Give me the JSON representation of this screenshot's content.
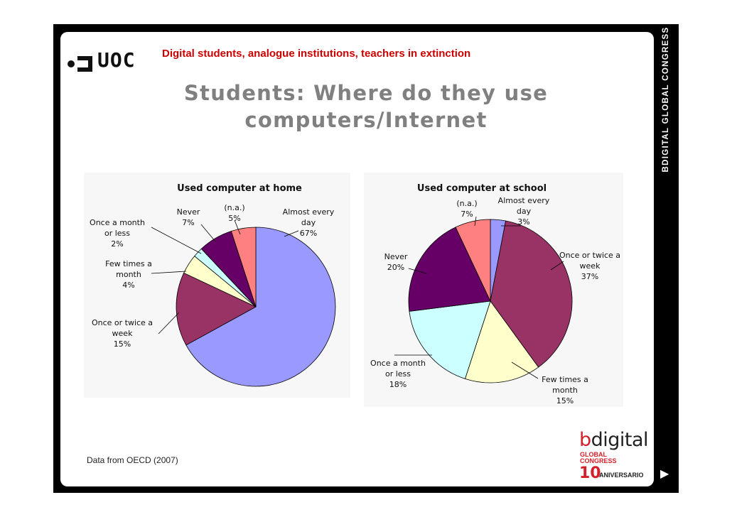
{
  "header": {
    "logo_text": "UOC",
    "subtitle": "Digital students, analogue institutions, teachers in extinction",
    "title": "Students: Where do they use\ncomputers/Internet"
  },
  "sidebar": {
    "label": "BDIGITAL GLOBAL CONGRESS",
    "next_icon": "▶"
  },
  "footer": {
    "source": "Data from OECD (2007)",
    "brand": {
      "b": "b",
      "rest": "digital",
      "line1": "GLOBAL",
      "line2": "CONGRESS",
      "number": "10",
      "anniversary": "ANIVERSARIO"
    }
  },
  "colors": {
    "subtitle": "#cc0000",
    "title": "#808080",
    "brand_red": "#d4202a"
  },
  "chart_data": [
    {
      "type": "pie",
      "title": "Used computer at home",
      "slices": [
        {
          "label": [
            "Almost every",
            "day",
            "67%"
          ],
          "value": 67,
          "color": "#9999ff"
        },
        {
          "label": [
            "Once or twice a",
            "week",
            "15%"
          ],
          "value": 15,
          "color": "#993366"
        },
        {
          "label": [
            "Few times a",
            "month",
            "4%"
          ],
          "value": 4,
          "color": "#ffffcc"
        },
        {
          "label": [
            "Once a month",
            "or less",
            "2%"
          ],
          "value": 2,
          "color": "#ccffff"
        },
        {
          "label": [
            "Never",
            "7%"
          ],
          "value": 7,
          "color": "#660066"
        },
        {
          "label": [
            "(n.a.)",
            "5%"
          ],
          "value": 5,
          "color": "#ff8080"
        }
      ]
    },
    {
      "type": "pie",
      "title": "Used computer at school",
      "slices": [
        {
          "label": [
            "Almost every",
            "day",
            "3%"
          ],
          "value": 3,
          "color": "#9999ff"
        },
        {
          "label": [
            "Once or twice a",
            "week",
            "37%"
          ],
          "value": 37,
          "color": "#993366"
        },
        {
          "label": [
            "Few times a",
            "month",
            "15%"
          ],
          "value": 15,
          "color": "#ffffcc"
        },
        {
          "label": [
            "Once a month",
            "or less",
            "18%"
          ],
          "value": 18,
          "color": "#ccffff"
        },
        {
          "label": [
            "Never",
            "20%"
          ],
          "value": 20,
          "color": "#660066"
        },
        {
          "label": [
            "(n.a.)",
            "7%"
          ],
          "value": 7,
          "color": "#ff8080"
        }
      ]
    }
  ]
}
